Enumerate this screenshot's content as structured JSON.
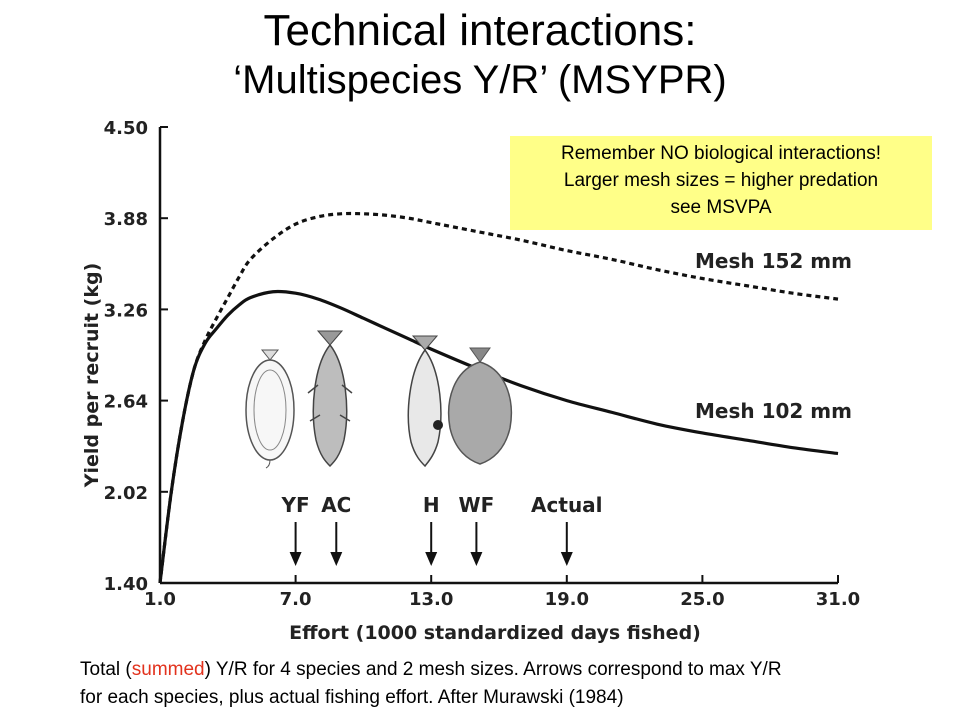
{
  "title": {
    "line1": "Technical interactions:",
    "line2": "‘Multispecies Y/R’ (MSYPR)"
  },
  "note": {
    "line1": "Remember NO biological interactions!",
    "line2": "Larger mesh sizes = higher predation",
    "line3": "see MSVPA",
    "background": "#ffff88"
  },
  "caption": {
    "part1": "Total (",
    "highlight": "summed",
    "part2": ") Y/R for 4 species and 2 mesh sizes. Arrows correspond to max Y/R",
    "line2": "for each species, plus actual fishing effort. After Murawski (1984)",
    "highlight_color": "#e2321d"
  },
  "chart_data": {
    "type": "line",
    "xlabel": "Effort (1000 standardized days fished)",
    "ylabel": "Yield per recruit (kg)",
    "xlim": [
      1.0,
      31.0
    ],
    "ylim": [
      1.4,
      4.5
    ],
    "x_ticks": [
      "1.0",
      "7.0",
      "13.0",
      "19.0",
      "25.0",
      "31.0"
    ],
    "y_ticks": [
      "1.40",
      "2.02",
      "2.64",
      "3.26",
      "3.88",
      "4.50"
    ],
    "series": [
      {
        "name": "Mesh 152 mm",
        "style": "dashed",
        "x": [
          1.0,
          1.5,
          2.0,
          2.5,
          3.0,
          3.5,
          4.0,
          4.5,
          5.0,
          6.0,
          7.0,
          8.0,
          9.0,
          10.0,
          11.0,
          12.0,
          13.0,
          15.0,
          17.0,
          19.0,
          21.0,
          23.0,
          25.0,
          27.0,
          29.0,
          31.0
        ],
        "y": [
          1.4,
          2.02,
          2.5,
          2.85,
          3.05,
          3.2,
          3.34,
          3.48,
          3.6,
          3.74,
          3.84,
          3.89,
          3.91,
          3.91,
          3.9,
          3.88,
          3.85,
          3.79,
          3.73,
          3.66,
          3.6,
          3.53,
          3.47,
          3.42,
          3.37,
          3.33
        ]
      },
      {
        "name": "Mesh 102 mm",
        "style": "solid",
        "x": [
          1.0,
          1.5,
          2.0,
          2.5,
          3.0,
          3.5,
          4.0,
          4.5,
          5.0,
          6.0,
          7.0,
          8.0,
          9.0,
          10.0,
          11.0,
          12.0,
          13.0,
          15.0,
          17.0,
          19.0,
          21.0,
          23.0,
          25.0,
          27.0,
          29.0,
          31.0
        ],
        "y": [
          1.4,
          2.02,
          2.5,
          2.85,
          3.03,
          3.13,
          3.22,
          3.29,
          3.34,
          3.38,
          3.37,
          3.33,
          3.27,
          3.2,
          3.13,
          3.06,
          2.99,
          2.86,
          2.74,
          2.64,
          2.56,
          2.48,
          2.42,
          2.37,
          2.32,
          2.28
        ]
      }
    ],
    "series_labels": [
      "Mesh 152 mm",
      "Mesh 102 mm"
    ],
    "arrows": [
      {
        "label": "YF",
        "x": 7.0
      },
      {
        "label": "AC",
        "x": 8.8
      },
      {
        "label": "H",
        "x": 13.0
      },
      {
        "label": "WF",
        "x": 15.0
      },
      {
        "label": "Actual",
        "x": 19.0
      }
    ],
    "species_icons": [
      "yellowtail-flounder-icon",
      "atlantic-cod-icon",
      "haddock-icon",
      "winter-flounder-icon"
    ],
    "grid": false,
    "legend": "inline labels on curves"
  }
}
